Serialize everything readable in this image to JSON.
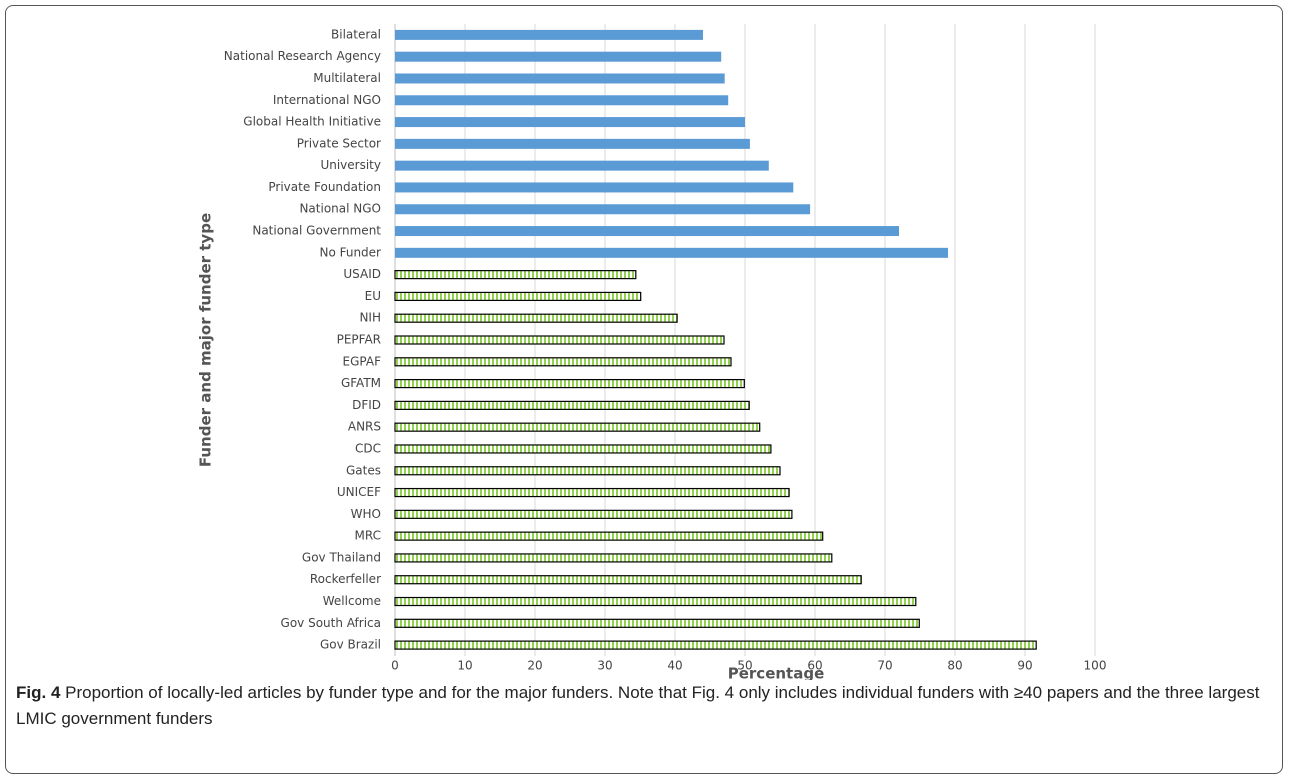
{
  "chart_data": {
    "type": "bar",
    "orientation": "horizontal",
    "xlabel": "Percentage",
    "ylabel": "Funder and major funder type",
    "categories": [
      "Bilateral",
      "National Research Agency",
      "Multilateral",
      "International NGO",
      "Global Health Initiative",
      "Private Sector",
      "University",
      "Private Foundation",
      "National NGO",
      "National Government",
      "No Funder",
      "USAID",
      "EU",
      "NIH",
      "PEPFAR",
      "EGPAF",
      "GFATM",
      "DFID",
      "ANRS",
      "CDC",
      "Gates",
      "UNICEF",
      "WHO",
      "MRC",
      "Gov Thailand",
      "Rockerfeller",
      "Wellcome",
      "Gov South Africa",
      "Gov Brazil"
    ],
    "values": [
      44,
      46.6,
      47.1,
      47.6,
      50,
      50.7,
      53.4,
      56.9,
      59.3,
      72,
      79,
      34.4,
      35.1,
      40.3,
      47,
      48,
      49.9,
      50.6,
      52.1,
      53.7,
      55,
      56.3,
      56.7,
      61.1,
      62.4,
      66.6,
      74.4,
      74.9,
      91.6
    ],
    "colors": [
      "#5b9bd5",
      "#5b9bd5",
      "#5b9bd5",
      "#5b9bd5",
      "#5b9bd5",
      "#5b9bd5",
      "#5b9bd5",
      "#5b9bd5",
      "#5b9bd5",
      "#5b9bd5",
      "#5b9bd5",
      "#92d050",
      "#92d050",
      "#92d050",
      "#92d050",
      "#92d050",
      "#92d050",
      "#92d050",
      "#92d050",
      "#92d050",
      "#92d050",
      "#92d050",
      "#92d050",
      "#92d050",
      "#92d050",
      "#92d050",
      "#92d050",
      "#92d050",
      "#92d050"
    ],
    "patterned_color": "#92d050",
    "xlim": [
      0,
      100
    ],
    "xticks": [
      0,
      10,
      20,
      30,
      40,
      50,
      60,
      70,
      80,
      90,
      100
    ],
    "grid": true
  },
  "caption": {
    "label": "Fig. 4",
    "text": " Proportion of locally-led articles by funder type and for the major funders. Note that Fig. 4 only includes individual funders with ≥40 papers and the three largest LMIC government funders"
  }
}
